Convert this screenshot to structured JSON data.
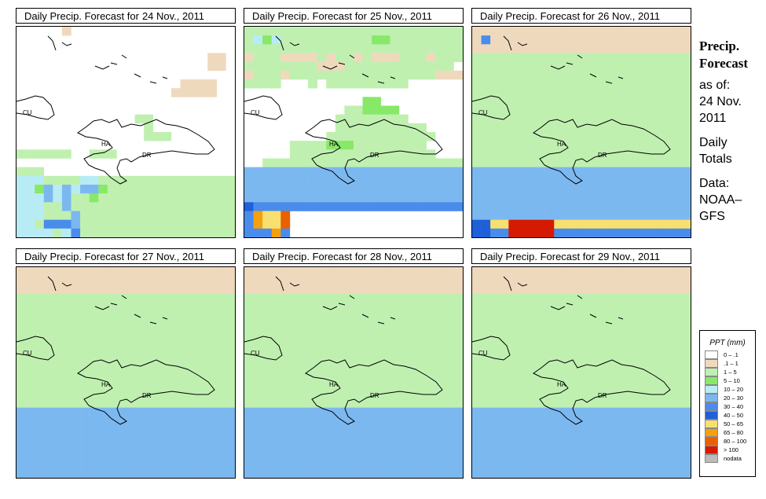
{
  "panels": [
    {
      "title": "Daily Precip. Forecast for",
      "date": "24 Nov., 2011"
    },
    {
      "title": "Daily Precip. Forecast for",
      "date": "25 Nov., 2011"
    },
    {
      "title": "Daily Precip. Forecast for",
      "date": "26 Nov., 2011"
    },
    {
      "title": "Daily Precip. Forecast for",
      "date": "27 Nov., 2011"
    },
    {
      "title": "Daily Precip. Forecast for",
      "date": "28 Nov., 2011"
    },
    {
      "title": "Daily Precip. Forecast for",
      "date": "29 Nov., 2011"
    }
  ],
  "map_labels": {
    "cuba": "CU",
    "haiti": "HA",
    "dominican_republic": "DR"
  },
  "sidebar": {
    "title1": "Precip.",
    "title2": "Forecast",
    "asof1": "as of:",
    "asof2": "24 Nov.",
    "asof3": "2011",
    "daily1": "Daily",
    "daily2": "Totals",
    "data1": "Data:",
    "data2": "NOAA–",
    "data3": "GFS"
  },
  "legend": {
    "title": "PPT (mm)",
    "items": [
      {
        "label": "0 – .1",
        "color": "#ffffff"
      },
      {
        "label": ".1 – 1",
        "color": "#efd9bd"
      },
      {
        "label": "1 – 5",
        "color": "#bff0b0"
      },
      {
        "label": "5 – 10",
        "color": "#88e868"
      },
      {
        "label": "10 – 20",
        "color": "#b8ecf4"
      },
      {
        "label": "20 – 30",
        "color": "#7cb8f0"
      },
      {
        "label": "30 – 40",
        "color": "#4a8cec"
      },
      {
        "label": "40 – 50",
        "color": "#1f5fd8"
      },
      {
        "label": "50 – 65",
        "color": "#f8e070"
      },
      {
        "label": "65 – 80",
        "color": "#f4a010"
      },
      {
        "label": "80 – 100",
        "color": "#e86000"
      },
      {
        "label": "> 100",
        "color": "#d41a00"
      },
      {
        "label": "nodata",
        "color": "#bbbbbb"
      }
    ]
  },
  "grids": [
    [
      "000001000000000000000000",
      "000000000000000000000000",
      "000000000000000000000000",
      "000000000000000000000110",
      "000000000000000000000110",
      "000000000000000000000000",
      "000000000000000000111100",
      "000000000000000001111100",
      "000000000000000000000000",
      "000000000000000000000000",
      "000000000000022000000000",
      "000000000000002000000000",
      "000000000000002220000000",
      "000000000000000000000000",
      "222222002220000000000000",
      "000000000000000000000000",
      "222000000000000000000000",
      "444222244222222222222222",
      "443545455322222222222222",
      "444545223222222222222222",
      "444225222222222222222222",
      "444222522222222222222222",
      "442666522222222222222222",
      "444424622222222222222222"
    ],
    [
      "222222222222222222222222",
      "243422222222223322222222",
      "222222222222222222222222",
      "122211112122121112221222",
      "222222221112222222222220",
      "122212222222222222222111",
      "222200020222222222000000",
      "000000000000000000000000",
      "000000000000033000000000",
      "000000000002233330000000",
      "000000000022222222000000",
      "000000000022222222220000",
      "000000000222222222222000",
      "000002222333222222220000",
      "000002222222222222222000",
      "002222222222222222222222",
      "555555555555555555555555",
      "555555555555555555555555",
      "555555555555555555555555",
      "555555555555555555555555",
      "766666666666666666666666",
      "6988a0000000000000000000",
      "6988a0000000000000000000",
      "666960000000000000000000"
    ],
    [
      "111111111111111111111111",
      "161111111111111111111111",
      "111111111111111111111111",
      "222222222222222222222222",
      "222222222222222222222222",
      "222222222222222222222222",
      "222222222222222222222222",
      "222222222222222222222222",
      "222222222222222222222222",
      "222222222222222222222222",
      "222222222222222222222222",
      "222222222222222222222222",
      "222222222222222222222222",
      "222222222222222222222222",
      "222222222222222222222222",
      "222222222222222222222222",
      "555555555555555555555555",
      "555555555555555555555555",
      "555555555555555555555555",
      "555555555555555555555555",
      "555555555555555555555555",
      "555555555555555555555555",
      "7788bbbbb888888888888888",
      "7766bbbbb666666666666666"
    ],
    [
      "111111111111111111111111",
      "111111111111111111111111",
      "111111111111111111111111",
      "222222222222222222222222",
      "222222222222222222222222",
      "222222222222222222222222",
      "222222222222222222222222",
      "222222222222222222222222",
      "222222222222222222222222",
      "222222222222222222222222",
      "222222222222222222222222",
      "222222222222222222222222",
      "222222222222222222222222",
      "222222222222222222222222",
      "222222222222222222222222",
      "222222222222222222222222",
      "555555555555555555555555",
      "555555555555555555555555",
      "555555555555555555555555",
      "555555555555555555555555",
      "555555555555555555555555",
      "555555555555555555555555",
      "555555555555555555555555",
      "555555555555555555555555"
    ],
    [
      "111111111111111111111111",
      "111111111111111111111111",
      "111111111111111111111111",
      "222222222222222222222222",
      "222222222222222222222222",
      "222222222222222222222222",
      "222222222222222222222222",
      "222222222222222222222222",
      "222222222222222222222222",
      "222222222222222222222222",
      "222222222222222222222222",
      "222222222222222222222222",
      "222222222222222222222222",
      "222222222222222222222222",
      "222222222222222222222222",
      "222222222222222222222222",
      "555555555555555555555555",
      "555555555555555555555555",
      "555555555555555555555555",
      "555555555555555555555555",
      "555555555555555555555555",
      "555555555555555555555555",
      "555555555555555555555555",
      "555555555555555555555555"
    ],
    [
      "111111111111111111111111",
      "111111111111111111111111",
      "111111111111111111111111",
      "222222222222222222222222",
      "222222222222222222222222",
      "222222222222222222222222",
      "222222222222222222222222",
      "222222222222222222222222",
      "222222222222222222222222",
      "222222222222222222222222",
      "222222222222222222222222",
      "222222222222222222222222",
      "222222222222222222222222",
      "222222222222222222222222",
      "222222222222222222222222",
      "222222222222222222222222",
      "555555555555555555555555",
      "555555555555555555555555",
      "555555555555555555555555",
      "555555555555555555555555",
      "555555555555555555555555",
      "555555555555555555555555",
      "555555555555555555555555",
      "555555555555555555555555"
    ]
  ]
}
